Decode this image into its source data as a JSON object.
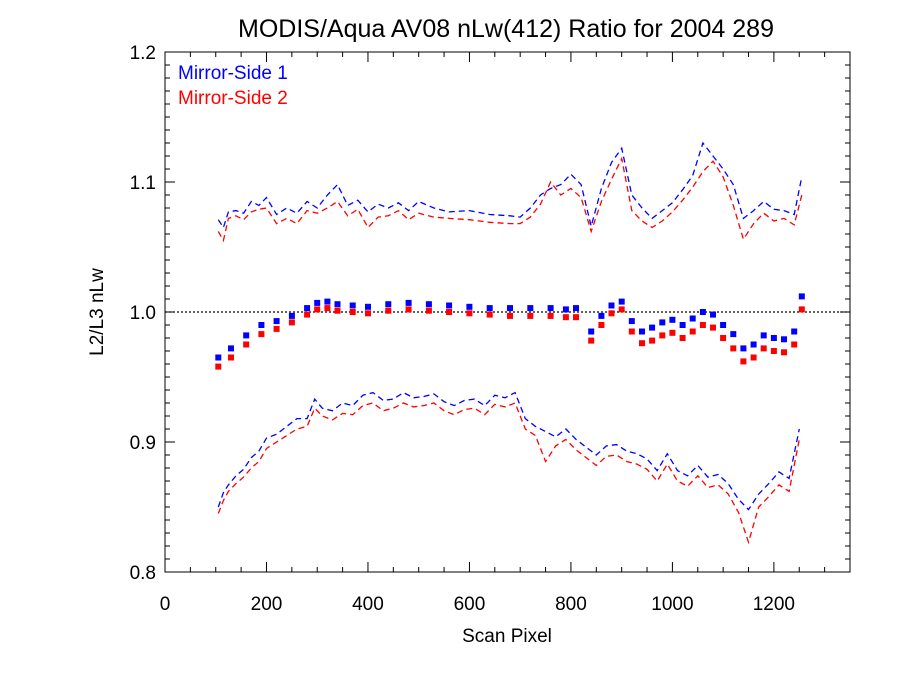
{
  "chart_data": {
    "type": "line",
    "title": "MODIS/Aqua AV08 nLw(412) Ratio for 2004 289",
    "xlabel": "Scan Pixel",
    "ylabel": "L2/L3 nLw",
    "xlim": [
      0,
      1350
    ],
    "ylim": [
      0.8,
      1.2
    ],
    "x_ticks": [
      0,
      200,
      400,
      600,
      800,
      1000,
      1200
    ],
    "x_tick_labels": [
      "0",
      "200",
      "400",
      "600",
      "800",
      "1000",
      "1200"
    ],
    "y_ticks": [
      0.8,
      0.9,
      1.0,
      1.1,
      1.2
    ],
    "y_tick_labels": [
      "0.8",
      "0.9",
      "1.0",
      "1.1",
      "1.2"
    ],
    "reference_line": 1.0,
    "legend_position": "top-left",
    "grid": false,
    "series": [
      {
        "name": "Mirror-Side 1",
        "color": "#0000ff",
        "mean": {
          "x": [
            105,
            130,
            160,
            190,
            220,
            250,
            280,
            300,
            320,
            340,
            370,
            400,
            440,
            480,
            520,
            560,
            600,
            640,
            680,
            720,
            760,
            790,
            810,
            840,
            860,
            880,
            900,
            920,
            940,
            960,
            980,
            1000,
            1020,
            1040,
            1060,
            1080,
            1100,
            1120,
            1140,
            1160,
            1180,
            1200,
            1220,
            1240,
            1255
          ],
          "y": [
            0.965,
            0.972,
            0.982,
            0.99,
            0.993,
            0.997,
            1.003,
            1.007,
            1.008,
            1.006,
            1.005,
            1.004,
            1.006,
            1.007,
            1.006,
            1.005,
            1.004,
            1.003,
            1.003,
            1.003,
            1.003,
            1.002,
            1.003,
            0.985,
            0.997,
            1.005,
            1.008,
            0.993,
            0.985,
            0.988,
            0.992,
            0.994,
            0.99,
            0.995,
            1.0,
            0.998,
            0.99,
            0.983,
            0.972,
            0.975,
            0.982,
            0.98,
            0.979,
            0.985,
            1.012
          ]
        },
        "upper": {
          "x": [
            105,
            115,
            125,
            140,
            155,
            170,
            185,
            200,
            220,
            240,
            260,
            280,
            300,
            320,
            340,
            360,
            380,
            400,
            420,
            440,
            460,
            480,
            500,
            530,
            560,
            600,
            640,
            680,
            700,
            720,
            740,
            760,
            780,
            800,
            820,
            840,
            860,
            880,
            900,
            920,
            940,
            960,
            980,
            1000,
            1020,
            1040,
            1060,
            1080,
            1100,
            1120,
            1140,
            1160,
            1180,
            1200,
            1220,
            1240,
            1255
          ],
          "y": [
            1.071,
            1.065,
            1.077,
            1.078,
            1.076,
            1.085,
            1.082,
            1.088,
            1.075,
            1.08,
            1.076,
            1.085,
            1.08,
            1.09,
            1.098,
            1.082,
            1.086,
            1.077,
            1.083,
            1.08,
            1.084,
            1.078,
            1.085,
            1.08,
            1.077,
            1.078,
            1.075,
            1.074,
            1.073,
            1.08,
            1.09,
            1.095,
            1.098,
            1.106,
            1.098,
            1.066,
            1.095,
            1.115,
            1.126,
            1.09,
            1.08,
            1.072,
            1.078,
            1.084,
            1.094,
            1.105,
            1.13,
            1.12,
            1.11,
            1.098,
            1.072,
            1.078,
            1.085,
            1.079,
            1.078,
            1.075,
            1.104
          ]
        },
        "lower": {
          "x": [
            105,
            115,
            125,
            140,
            155,
            170,
            185,
            200,
            220,
            240,
            260,
            280,
            295,
            310,
            330,
            350,
            370,
            390,
            410,
            430,
            450,
            470,
            490,
            510,
            530,
            550,
            570,
            590,
            610,
            630,
            650,
            670,
            690,
            710,
            730,
            750,
            770,
            790,
            810,
            830,
            850,
            870,
            890,
            910,
            930,
            950,
            970,
            990,
            1010,
            1030,
            1050,
            1070,
            1090,
            1110,
            1130,
            1150,
            1170,
            1190,
            1210,
            1230,
            1250
          ],
          "y": [
            0.85,
            0.861,
            0.867,
            0.874,
            0.879,
            0.888,
            0.893,
            0.903,
            0.906,
            0.912,
            0.918,
            0.918,
            0.933,
            0.926,
            0.924,
            0.93,
            0.928,
            0.936,
            0.938,
            0.932,
            0.933,
            0.938,
            0.934,
            0.935,
            0.937,
            0.931,
            0.928,
            0.932,
            0.933,
            0.928,
            0.936,
            0.934,
            0.938,
            0.918,
            0.912,
            0.908,
            0.904,
            0.91,
            0.902,
            0.896,
            0.89,
            0.897,
            0.898,
            0.893,
            0.891,
            0.887,
            0.878,
            0.891,
            0.878,
            0.874,
            0.882,
            0.873,
            0.875,
            0.868,
            0.856,
            0.848,
            0.86,
            0.868,
            0.877,
            0.872,
            0.91
          ]
        }
      },
      {
        "name": "Mirror-Side 2",
        "color": "#ff0000",
        "mean": {
          "x": [
            105,
            130,
            160,
            190,
            220,
            250,
            280,
            300,
            320,
            340,
            370,
            400,
            440,
            480,
            520,
            560,
            600,
            640,
            680,
            720,
            760,
            790,
            810,
            840,
            860,
            880,
            900,
            920,
            940,
            960,
            980,
            1000,
            1020,
            1040,
            1060,
            1080,
            1100,
            1120,
            1140,
            1160,
            1180,
            1200,
            1220,
            1240,
            1255
          ],
          "y": [
            0.958,
            0.965,
            0.975,
            0.983,
            0.987,
            0.992,
            0.998,
            1.002,
            1.003,
            1.001,
            1.0,
            0.999,
            1.001,
            1.002,
            1.001,
            1.0,
            0.999,
            0.998,
            0.997,
            0.997,
            0.997,
            0.996,
            0.996,
            0.978,
            0.99,
            0.999,
            1.002,
            0.985,
            0.976,
            0.978,
            0.982,
            0.984,
            0.98,
            0.985,
            0.99,
            0.988,
            0.98,
            0.972,
            0.962,
            0.965,
            0.972,
            0.97,
            0.969,
            0.975,
            1.002
          ]
        },
        "upper": {
          "x": [
            105,
            115,
            125,
            140,
            155,
            170,
            185,
            200,
            220,
            240,
            260,
            280,
            300,
            320,
            340,
            360,
            380,
            400,
            420,
            440,
            460,
            480,
            500,
            530,
            560,
            600,
            640,
            680,
            700,
            720,
            740,
            760,
            780,
            800,
            820,
            840,
            860,
            880,
            900,
            920,
            940,
            960,
            980,
            1000,
            1020,
            1040,
            1060,
            1080,
            1100,
            1120,
            1140,
            1160,
            1180,
            1200,
            1220,
            1240,
            1255
          ],
          "y": [
            1.062,
            1.055,
            1.072,
            1.074,
            1.071,
            1.077,
            1.079,
            1.08,
            1.068,
            1.072,
            1.068,
            1.078,
            1.076,
            1.08,
            1.085,
            1.074,
            1.079,
            1.065,
            1.073,
            1.074,
            1.078,
            1.071,
            1.076,
            1.073,
            1.072,
            1.071,
            1.069,
            1.068,
            1.068,
            1.073,
            1.083,
            1.1,
            1.09,
            1.095,
            1.088,
            1.062,
            1.085,
            1.102,
            1.118,
            1.078,
            1.07,
            1.065,
            1.07,
            1.077,
            1.086,
            1.096,
            1.108,
            1.116,
            1.104,
            1.082,
            1.056,
            1.068,
            1.076,
            1.07,
            1.072,
            1.067,
            1.09
          ]
        },
        "lower": {
          "x": [
            105,
            115,
            125,
            140,
            155,
            170,
            185,
            200,
            220,
            240,
            260,
            280,
            295,
            310,
            330,
            350,
            370,
            390,
            410,
            430,
            450,
            470,
            490,
            510,
            530,
            550,
            570,
            590,
            610,
            630,
            650,
            670,
            690,
            710,
            730,
            750,
            770,
            790,
            810,
            830,
            850,
            870,
            890,
            910,
            930,
            950,
            970,
            990,
            1010,
            1030,
            1050,
            1070,
            1090,
            1110,
            1130,
            1150,
            1170,
            1190,
            1210,
            1230,
            1250
          ],
          "y": [
            0.845,
            0.855,
            0.862,
            0.868,
            0.873,
            0.88,
            0.885,
            0.895,
            0.9,
            0.905,
            0.91,
            0.912,
            0.926,
            0.92,
            0.917,
            0.922,
            0.921,
            0.928,
            0.93,
            0.924,
            0.926,
            0.93,
            0.927,
            0.928,
            0.93,
            0.924,
            0.921,
            0.925,
            0.926,
            0.921,
            0.929,
            0.927,
            0.93,
            0.91,
            0.905,
            0.885,
            0.897,
            0.902,
            0.894,
            0.888,
            0.882,
            0.889,
            0.89,
            0.885,
            0.883,
            0.879,
            0.87,
            0.883,
            0.87,
            0.866,
            0.874,
            0.865,
            0.867,
            0.86,
            0.846,
            0.823,
            0.85,
            0.858,
            0.867,
            0.862,
            0.902
          ]
        }
      }
    ]
  }
}
